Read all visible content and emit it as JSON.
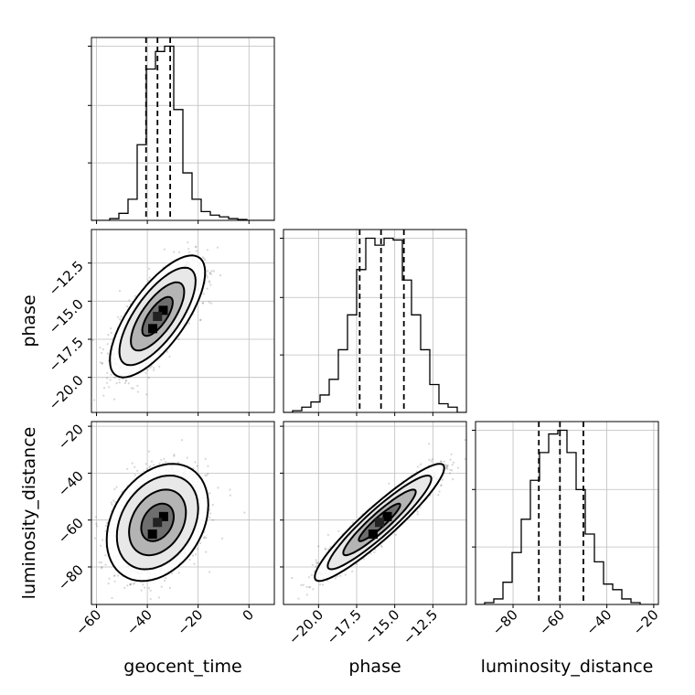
{
  "chart_data": {
    "type": "corner",
    "parameters": [
      "geocent_time",
      "phase",
      "luminosity_distance"
    ],
    "axis_labels": {
      "x": [
        "geocent_time",
        "phase",
        "luminosity_distance"
      ],
      "y": [
        "phase",
        "luminosity_distance"
      ]
    },
    "ranges": {
      "geocent_time": [
        -62,
        10
      ],
      "phase": [
        -22.3,
        -10.3
      ],
      "luminosity_distance": [
        -96,
        -18
      ]
    },
    "ticks": {
      "geocent_time": [
        -60,
        -40,
        -20,
        0
      ],
      "phase": [
        -20.0,
        -17.5,
        -15.0,
        -12.5
      ],
      "luminosity_distance": [
        -80,
        -60,
        -40,
        -20
      ]
    },
    "tick_labels": {
      "geocent_time": [
        "−60",
        "−40",
        "−20",
        "0"
      ],
      "phase": [
        "−20.0",
        "−17.5",
        "−15.0",
        "−12.5"
      ],
      "luminosity_distance": [
        "−80",
        "−60",
        "−40",
        "−20"
      ]
    },
    "grid": true,
    "histograms": [
      {
        "parameter": "geocent_time",
        "bin_edges": [
          -62,
          -58.4,
          -54.8,
          -51.2,
          -47.6,
          -44,
          -40.4,
          -36.8,
          -33.2,
          -29.6,
          -26,
          -22.4,
          -18.8,
          -15.2,
          -11.6,
          -8,
          -4.4,
          -0.8,
          2.6,
          6.2,
          10
        ],
        "counts": [
          0,
          0,
          1,
          4,
          12,
          43,
          86,
          96,
          99,
          63,
          27,
          12,
          5,
          3,
          2,
          1,
          0.5,
          0,
          0,
          0
        ],
        "quantiles": [
          -40.5,
          -36,
          -31
        ]
      },
      {
        "parameter": "phase",
        "bin_edges": [
          -22.3,
          -21.7,
          -21.1,
          -20.5,
          -19.9,
          -19.3,
          -18.7,
          -18.1,
          -17.5,
          -16.9,
          -16.3,
          -15.7,
          -15.1,
          -14.5,
          -13.9,
          -13.3,
          -12.7,
          -12.1,
          -11.5,
          -10.9,
          -10.3
        ],
        "counts": [
          0,
          1,
          3,
          6,
          10,
          19,
          36,
          56,
          82,
          100,
          96,
          100,
          99,
          76,
          56,
          36,
          16,
          5,
          3,
          0
        ],
        "quantiles": [
          -17.3,
          -15.9,
          -14.4
        ]
      },
      {
        "parameter": "luminosity_distance",
        "bin_edges": [
          -96,
          -92.1,
          -88.2,
          -84.3,
          -80.4,
          -76.5,
          -72.6,
          -68.7,
          -64.8,
          -60.9,
          -57,
          -53.1,
          -49.2,
          -45.3,
          -41.4,
          -37.5,
          -33.6,
          -29.7,
          -25.8,
          -21.9,
          -18
        ],
        "counts": [
          0,
          1,
          3,
          12,
          28,
          46,
          67,
          82,
          92,
          94,
          82,
          62,
          38,
          23,
          11,
          8,
          3,
          1,
          0,
          0
        ],
        "quantiles": [
          -69,
          -60,
          -50
        ]
      }
    ],
    "pairs": [
      {
        "x": "geocent_time",
        "y": "phase",
        "mean": [
          -36,
          -16
        ],
        "std": [
          7.5,
          1.6
        ],
        "correlation": 0.72
      },
      {
        "x": "geocent_time",
        "y": "luminosity_distance",
        "mean": [
          -36,
          -61
        ],
        "std": [
          8,
          10
        ],
        "correlation": 0.3
      },
      {
        "x": "phase",
        "y": "luminosity_distance",
        "mean": [
          -16,
          -61
        ],
        "std": [
          1.7,
          10
        ],
        "correlation": 0.93
      }
    ]
  }
}
